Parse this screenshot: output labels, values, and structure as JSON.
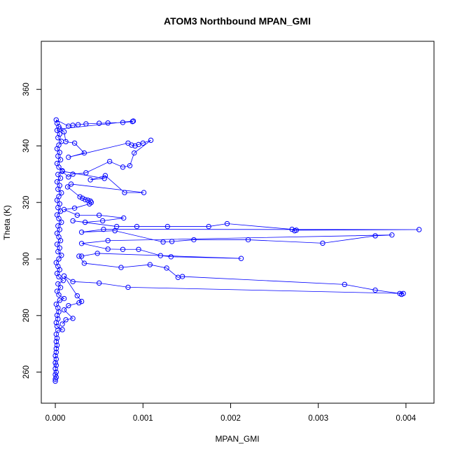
{
  "chart_data": {
    "type": "scatter",
    "title": "ATOM3 Northbound MPAN_GMI",
    "xlabel": "MPAN_GMI",
    "ylabel": "Theta (K)",
    "xlim": [
      -0.00016,
      0.00432
    ],
    "ylim": [
      249,
      377
    ],
    "x_ticks": [
      0,
      0.001,
      0.002,
      0.003,
      0.004
    ],
    "x_tick_labels": [
      "0.000",
      "0.001",
      "0.002",
      "0.003",
      "0.004"
    ],
    "y_ticks": [
      260,
      280,
      300,
      320,
      340,
      360
    ],
    "y_tick_labels": [
      "260",
      "280",
      "300",
      "320",
      "340",
      "360"
    ],
    "color": "#0000ff",
    "marker": "open-circle",
    "connected": true,
    "grid": false,
    "legend": "none",
    "series": [
      {
        "points": [
          [
            0.0,
            256.8
          ],
          [
            0.0,
            257.5
          ],
          [
            1e-05,
            258.2
          ],
          [
            0.0,
            259.1
          ],
          [
            1e-05,
            260.0
          ],
          [
            0.0,
            261.2
          ],
          [
            1e-05,
            262.4
          ],
          [
            0.0,
            263.3
          ],
          [
            1e-05,
            264.6
          ],
          [
            0.0,
            265.8
          ],
          [
            1e-05,
            267.0
          ],
          [
            1e-05,
            268.3
          ],
          [
            2e-05,
            269.5
          ],
          [
            1e-05,
            270.8
          ],
          [
            2e-05,
            272.0
          ],
          [
            1e-05,
            273.4
          ],
          [
            3e-05,
            274.8
          ],
          [
            8e-05,
            275.0
          ],
          [
            2e-05,
            276.2
          ],
          [
            1e-05,
            277.5
          ],
          [
            3e-05,
            278.8
          ],
          [
            2e-05,
            280.1
          ],
          [
            4e-05,
            281.3
          ],
          [
            3e-05,
            282.7
          ],
          [
            1e-05,
            284.0
          ],
          [
            5e-05,
            285.4
          ],
          [
            0.0001,
            286.0
          ],
          [
            4e-05,
            287.3
          ],
          [
            2e-05,
            288.6
          ],
          [
            6e-05,
            289.9
          ],
          [
            3e-05,
            291.2
          ],
          [
            9e-05,
            292.4
          ],
          [
            4e-05,
            293.7
          ],
          [
            2e-05,
            294.9
          ],
          [
            5e-05,
            296.2
          ],
          [
            3e-05,
            297.4
          ],
          [
            1e-05,
            298.7
          ],
          [
            4e-05,
            300.0
          ],
          [
            7e-05,
            301.3
          ],
          [
            3e-05,
            302.6
          ],
          [
            5e-05,
            303.9
          ],
          [
            2e-05,
            305.2
          ],
          [
            6e-05,
            306.5
          ],
          [
            4e-05,
            307.8
          ],
          [
            2e-05,
            309.1
          ],
          [
            5e-05,
            310.4
          ],
          [
            3e-05,
            311.7
          ],
          [
            7e-05,
            313.0
          ],
          [
            4e-05,
            314.3
          ],
          [
            2e-05,
            315.6
          ],
          [
            6e-05,
            316.9
          ],
          [
            3e-05,
            318.2
          ],
          [
            5e-05,
            319.5
          ],
          [
            2e-05,
            320.8
          ],
          [
            4e-05,
            322.1
          ],
          [
            7e-05,
            323.4
          ],
          [
            3e-05,
            324.7
          ],
          [
            5e-05,
            326.0
          ],
          [
            2e-05,
            327.3
          ],
          [
            6e-05,
            328.6
          ],
          [
            3e-05,
            329.9
          ],
          [
            8e-05,
            331.2
          ],
          [
            4e-05,
            332.5
          ],
          [
            2e-05,
            333.8
          ],
          [
            6e-05,
            335.1
          ],
          [
            3e-05,
            336.4
          ],
          [
            5e-05,
            337.7
          ],
          [
            2e-05,
            339.0
          ],
          [
            4e-05,
            340.3
          ],
          [
            7e-05,
            341.6
          ],
          [
            3e-05,
            342.9
          ],
          [
            5e-05,
            344.2
          ],
          [
            2e-05,
            345.5
          ],
          [
            4e-05,
            346.8
          ],
          [
            2e-05,
            348.0
          ],
          [
            1e-05,
            349.2
          ],
          [
            0.00015,
            347.0
          ],
          [
            0.0002,
            347.3
          ],
          [
            0.00026,
            347.5
          ],
          [
            0.00035,
            347.8
          ],
          [
            0.0005,
            348.0
          ],
          [
            0.0006,
            348.1
          ],
          [
            0.00077,
            348.3
          ],
          [
            0.00088,
            348.6
          ],
          [
            0.00089,
            348.8
          ],
          [
            5e-05,
            346.0
          ],
          [
            0.0001,
            345.0
          ],
          [
            0.00012,
            341.5
          ],
          [
            0.00022,
            341.0
          ],
          [
            0.00033,
            337.5
          ],
          [
            0.00015,
            336.0
          ],
          [
            0.00083,
            341.0
          ],
          [
            0.00087,
            340.3
          ],
          [
            0.00091,
            340.0
          ],
          [
            0.00095,
            340.5
          ],
          [
            0.001,
            341.0
          ],
          [
            0.00109,
            342.0
          ],
          [
            0.0009,
            337.5
          ],
          [
            0.00085,
            333.0
          ],
          [
            0.00077,
            332.5
          ],
          [
            0.00062,
            334.5
          ],
          [
            0.00035,
            330.5
          ],
          [
            0.0002,
            330.0
          ],
          [
            0.00015,
            329.0
          ],
          [
            8e-05,
            331.0
          ],
          [
            0.00056,
            328.5
          ],
          [
            0.0004,
            328.0
          ],
          [
            0.00057,
            329.5
          ],
          [
            0.00079,
            323.5
          ],
          [
            0.00101,
            323.5
          ],
          [
            0.00018,
            326.5
          ],
          [
            0.00014,
            325.5
          ],
          [
            0.00028,
            322.0
          ],
          [
            0.00031,
            321.5
          ],
          [
            0.00034,
            321.0
          ],
          [
            0.00037,
            320.8
          ],
          [
            0.0004,
            320.5
          ],
          [
            0.00041,
            320.0
          ],
          [
            0.00039,
            319.5
          ],
          [
            0.00022,
            318.0
          ],
          [
            0.0001,
            317.5
          ],
          [
            0.00025,
            315.5
          ],
          [
            0.0005,
            315.5
          ],
          [
            0.00078,
            314.5
          ],
          [
            0.00054,
            313.5
          ],
          [
            0.00034,
            313.0
          ],
          [
            0.0002,
            313.5
          ],
          [
            0.0007,
            311.5
          ],
          [
            0.00093,
            311.5
          ],
          [
            0.00128,
            311.5
          ],
          [
            0.00175,
            311.5
          ],
          [
            0.00196,
            312.5
          ],
          [
            0.0027,
            310.5
          ],
          [
            0.00273,
            310.0
          ],
          [
            0.00275,
            310.2
          ],
          [
            0.00415,
            310.4
          ],
          [
            0.00055,
            310.5
          ],
          [
            0.0003,
            309.5
          ],
          [
            0.00068,
            310.0
          ],
          [
            0.00123,
            306.0
          ],
          [
            0.00133,
            306.2
          ],
          [
            0.00158,
            306.8
          ],
          [
            0.0022,
            306.8
          ],
          [
            0.00305,
            305.6
          ],
          [
            0.00365,
            308.2
          ],
          [
            0.00384,
            308.5
          ],
          [
            0.0006,
            306.5
          ],
          [
            0.0003,
            305.5
          ],
          [
            0.0006,
            303.5
          ],
          [
            0.00077,
            303.4
          ],
          [
            0.00095,
            303.4
          ],
          [
            0.0012,
            301.2
          ],
          [
            0.00132,
            300.8
          ],
          [
            0.00212,
            300.2
          ],
          [
            0.00048,
            302.0
          ],
          [
            0.0003,
            301.0
          ],
          [
            0.00027,
            301.0
          ],
          [
            0.00033,
            298.5
          ],
          [
            0.00075,
            297.0
          ],
          [
            0.00108,
            298.0
          ],
          [
            0.00127,
            296.8
          ],
          [
            0.0014,
            293.5
          ],
          [
            0.00145,
            293.8
          ],
          [
            0.0033,
            291.0
          ],
          [
            0.00365,
            289.0
          ],
          [
            0.00393,
            287.8
          ],
          [
            0.00395,
            287.5
          ],
          [
            0.00397,
            287.8
          ],
          [
            0.00083,
            290.0
          ],
          [
            0.0005,
            291.5
          ],
          [
            0.0002,
            292.0
          ],
          [
            0.0001,
            294.0
          ],
          [
            0.00025,
            287.0
          ],
          [
            0.0003,
            285.0
          ],
          [
            0.00027,
            284.5
          ],
          [
            0.00015,
            283.5
          ],
          [
            0.0001,
            282.0
          ],
          [
            0.0002,
            279.0
          ],
          [
            0.00012,
            278.5
          ],
          [
            8e-05,
            277.0
          ]
        ]
      }
    ]
  }
}
